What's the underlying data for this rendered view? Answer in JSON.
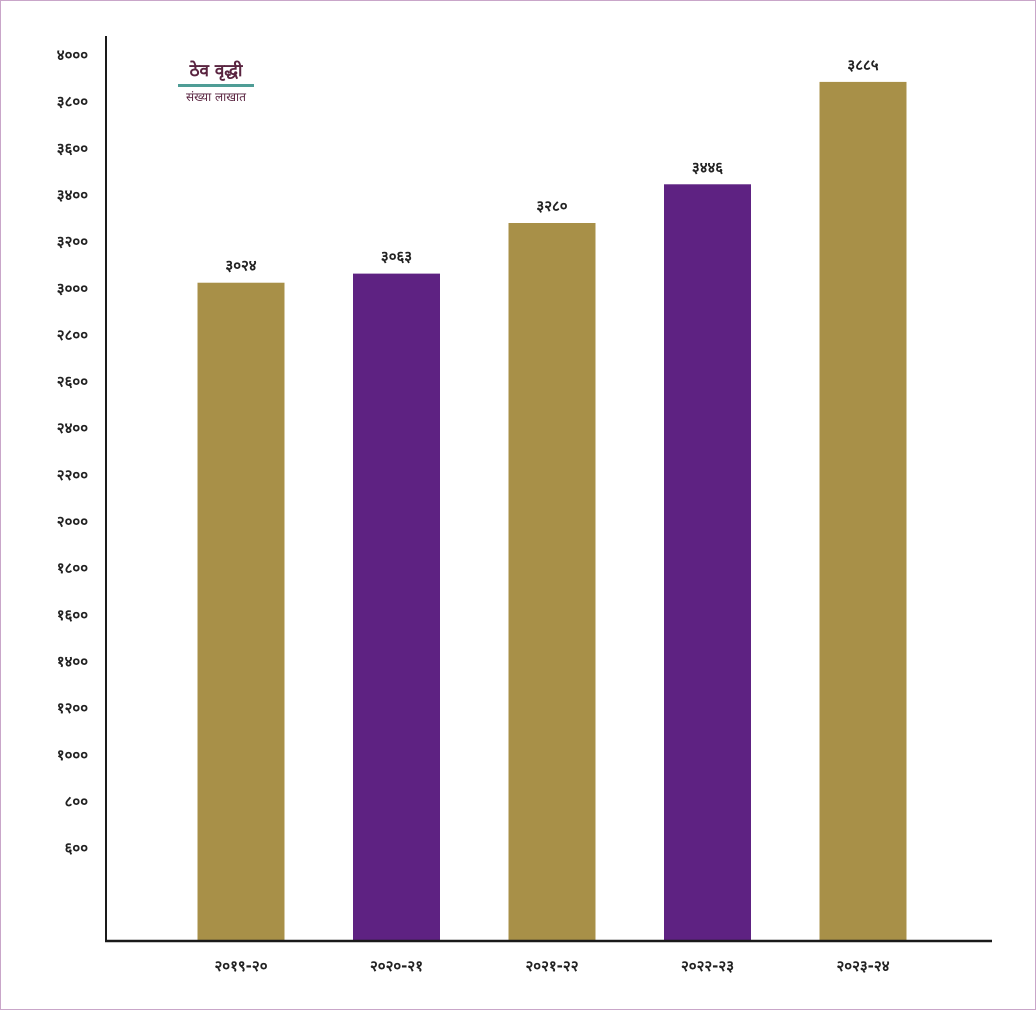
{
  "chart_data": {
    "type": "bar",
    "title": "ठेव वृद्धी",
    "subtitle": "संख्या लाखात",
    "categories": [
      "२०१९-२०",
      "२०२०-२१",
      "२०२१-२२",
      "२०२२-२३",
      "२०२३-२४"
    ],
    "values": [
      3024,
      3063,
      3280,
      3446,
      3885
    ],
    "value_labels": [
      "३०२४",
      "३०६३",
      "३२८०",
      "३४४६",
      "३८८५"
    ],
    "bar_colors": [
      "#a89048",
      "#5e2282",
      "#a89048",
      "#5e2282",
      "#a89048"
    ],
    "yticks": [
      600,
      800,
      1000,
      1200,
      1400,
      1600,
      1800,
      2000,
      2200,
      2400,
      2600,
      2800,
      3000,
      3200,
      3400,
      3600,
      3800,
      4000
    ],
    "ytick_labels": [
      "६००",
      "८००",
      "१०००",
      "१२००",
      "१४००",
      "१६००",
      "१८००",
      "२०००",
      "२२००",
      "२४००",
      "२६००",
      "२८००",
      "३०००",
      "३२००",
      "३४००",
      "३६००",
      "३८००",
      "४०००"
    ],
    "ylim": [
      0,
      4000
    ],
    "grid": false,
    "legend_position": "top-left",
    "title_rule_color": "#4f9d96"
  }
}
